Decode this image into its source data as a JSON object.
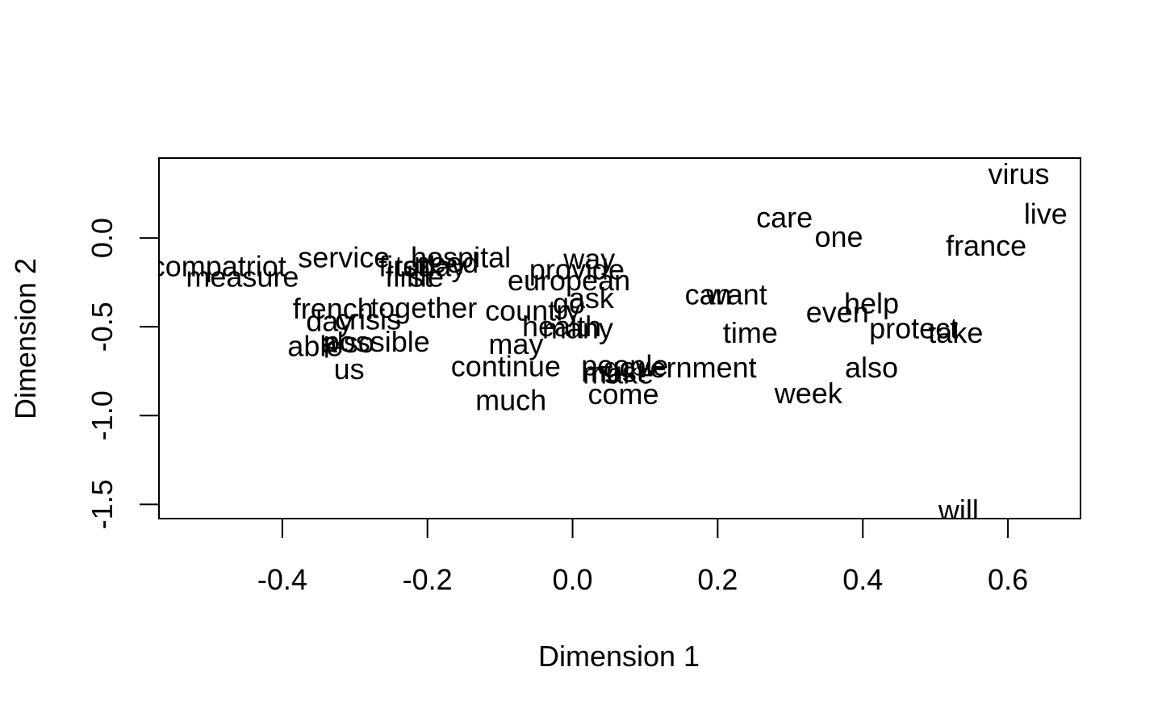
{
  "chart_data": {
    "type": "scatter",
    "title": "",
    "xlabel": "Dimension 1",
    "ylabel": "Dimension 2",
    "xlim": [
      -0.57,
      0.7
    ],
    "ylim": [
      -1.58,
      0.45
    ],
    "xticks": [
      -0.4,
      -0.2,
      0.0,
      0.2,
      0.4,
      0.6
    ],
    "xtick_labels": [
      "-0.4",
      "-0.2",
      "0.0",
      "0.2",
      "0.4",
      "0.6"
    ],
    "yticks": [
      -1.5,
      -1.0,
      -0.5,
      0.0
    ],
    "ytick_labels": [
      "-1.5",
      "-1.0",
      "-0.5",
      "0.0"
    ],
    "grid": false,
    "legend": "none",
    "marker_style": "text-labels",
    "points": [
      {
        "label": "virus",
        "x": 0.615,
        "y": 0.36
      },
      {
        "label": "live",
        "x": 0.652,
        "y": 0.135
      },
      {
        "label": "care",
        "x": 0.292,
        "y": 0.115
      },
      {
        "label": "one",
        "x": 0.367,
        "y": 0.005
      },
      {
        "label": "france",
        "x": 0.57,
        "y": -0.045
      },
      {
        "label": "compatriot",
        "x": -0.488,
        "y": -0.16
      },
      {
        "label": "measure",
        "x": -0.455,
        "y": -0.22
      },
      {
        "label": "service",
        "x": -0.315,
        "y": -0.11
      },
      {
        "label": "hospital",
        "x": -0.154,
        "y": -0.11
      },
      {
        "label": "need",
        "x": -0.174,
        "y": -0.14
      },
      {
        "label": "today",
        "x": -0.196,
        "y": -0.16
      },
      {
        "label": "first",
        "x": -0.235,
        "y": -0.16
      },
      {
        "label": "life",
        "x": -0.203,
        "y": -0.22
      },
      {
        "label": "first",
        "x": -0.226,
        "y": -0.22
      },
      {
        "label": "way",
        "x": 0.023,
        "y": -0.12
      },
      {
        "label": "provide",
        "x": 0.006,
        "y": -0.18
      },
      {
        "label": "european",
        "x": -0.005,
        "y": -0.24
      },
      {
        "label": "can",
        "x": 0.187,
        "y": -0.32
      },
      {
        "label": "want",
        "x": 0.226,
        "y": -0.32
      },
      {
        "label": "ask",
        "x": 0.026,
        "y": -0.34
      },
      {
        "label": "go",
        "x": -0.005,
        "y": -0.37
      },
      {
        "label": "country",
        "x": -0.055,
        "y": -0.41
      },
      {
        "label": "french",
        "x": -0.33,
        "y": -0.4
      },
      {
        "label": "together",
        "x": -0.205,
        "y": -0.395
      },
      {
        "label": "crisis",
        "x": -0.282,
        "y": -0.46
      },
      {
        "label": "day",
        "x": -0.335,
        "y": -0.47
      },
      {
        "label": "health",
        "x": -0.015,
        "y": -0.5
      },
      {
        "label": "many",
        "x": 0.007,
        "y": -0.51
      },
      {
        "label": "help",
        "x": 0.412,
        "y": -0.37
      },
      {
        "label": "even",
        "x": 0.365,
        "y": -0.42
      },
      {
        "label": "protect",
        "x": 0.47,
        "y": -0.51
      },
      {
        "label": "take",
        "x": 0.528,
        "y": -0.535
      },
      {
        "label": "time",
        "x": 0.245,
        "y": -0.535
      },
      {
        "label": "possible",
        "x": -0.27,
        "y": -0.585
      },
      {
        "label": "also",
        "x": -0.31,
        "y": -0.59
      },
      {
        "label": "able",
        "x": -0.355,
        "y": -0.61
      },
      {
        "label": "may",
        "x": -0.078,
        "y": -0.6
      },
      {
        "label": "us",
        "x": -0.308,
        "y": -0.74
      },
      {
        "label": "continue",
        "x": -0.092,
        "y": -0.725
      },
      {
        "label": "people",
        "x": 0.072,
        "y": -0.72
      },
      {
        "label": "government",
        "x": 0.148,
        "y": -0.73
      },
      {
        "label": "must",
        "x": 0.056,
        "y": -0.755
      },
      {
        "label": "make",
        "x": 0.063,
        "y": -0.765
      },
      {
        "label": "also",
        "x": 0.412,
        "y": -0.73
      },
      {
        "label": "come",
        "x": 0.07,
        "y": -0.88
      },
      {
        "label": "week",
        "x": 0.325,
        "y": -0.875
      },
      {
        "label": "much",
        "x": -0.085,
        "y": -0.915
      },
      {
        "label": "will",
        "x": 0.532,
        "y": -1.535
      }
    ]
  }
}
